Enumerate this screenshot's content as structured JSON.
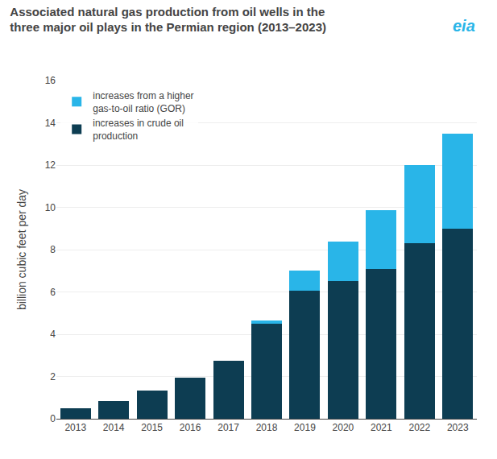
{
  "chart_data": {
    "type": "bar",
    "stacked": true,
    "title": "Associated natural gas production from oil wells in the\nthree major oil plays in the Permian region (2013–2023)",
    "ylabel": "billion cubic feet per day",
    "annotations": [
      "eia"
    ],
    "categories": [
      "2013",
      "2014",
      "2015",
      "2016",
      "2017",
      "2018",
      "2019",
      "2020",
      "2021",
      "2022",
      "2023"
    ],
    "series": [
      {
        "name": "increases in crude oil\nproduction",
        "color": "#0d3d52",
        "values": [
          0.5,
          0.85,
          1.35,
          1.95,
          2.75,
          4.5,
          6.05,
          6.5,
          7.1,
          8.3,
          9.0
        ]
      },
      {
        "name": "increases from a higher\ngas-to-oil ratio (GOR)",
        "color": "#29b5e8",
        "values": [
          0.0,
          0.0,
          0.0,
          0.0,
          0.0,
          0.15,
          0.95,
          1.9,
          2.75,
          3.7,
          4.5
        ]
      }
    ],
    "ylim": [
      0,
      16
    ],
    "yticks": [
      0,
      2,
      4,
      6,
      8,
      10,
      12,
      14,
      16
    ],
    "grid": true,
    "legend": "upper left"
  }
}
